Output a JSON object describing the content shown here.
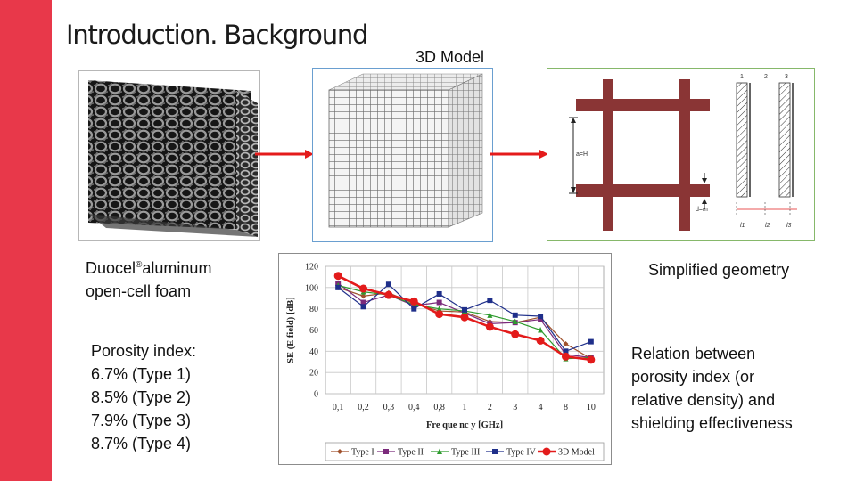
{
  "slide": {
    "title": "Introduction. Background",
    "accent_color": "#e8384a"
  },
  "model": {
    "label": "3D Model"
  },
  "foam": {
    "caption_line1_a": "Duocel",
    "caption_sup": "®",
    "caption_line1_b": "aluminum",
    "caption_line2": "open-cell foam"
  },
  "porosity": {
    "heading": "Porosity index:",
    "items": [
      "6.7% (Type 1)",
      "8.5% (Type 2)",
      "7.9% (Type 3)",
      "8.7% (Type 4)"
    ]
  },
  "geometry": {
    "caption": "Simplified geometry",
    "labels": {
      "top_1": "1",
      "top_2": "2",
      "top_3": "3",
      "side_dim": "a=H",
      "bottom_dim": "d=m",
      "l1": "l1",
      "l2": "l2",
      "l3": "l3"
    }
  },
  "relation": {
    "lines": [
      "Relation between",
      "porosity index (or",
      "relative density) and",
      "shielding effectiveness"
    ]
  },
  "chart_data": {
    "type": "line",
    "categories": [
      "0,1",
      "0,2",
      "0,3",
      "0,4",
      "0,8",
      "1",
      "2",
      "3",
      "4",
      "8",
      "10"
    ],
    "xlabel": "Fre que nc y [GHz]",
    "ylabel": "SE (E field) [dB]",
    "ylim": [
      0,
      120
    ],
    "yticks": [
      0,
      20,
      40,
      60,
      80,
      100,
      120
    ],
    "grid": true,
    "legend_position": "bottom",
    "series": [
      {
        "name": "Type I",
        "color": "#a0522d",
        "marker": "diamond",
        "values": [
          100,
          92,
          95,
          85,
          78,
          77,
          68,
          67,
          72,
          47,
          33
        ]
      },
      {
        "name": "Type II",
        "color": "#7b2a7b",
        "marker": "square",
        "values": [
          104,
          86,
          93,
          83,
          86,
          76,
          66,
          67,
          70,
          37,
          34
        ]
      },
      {
        "name": "Type III",
        "color": "#2e9b2e",
        "marker": "triangle",
        "values": [
          102,
          96,
          93,
          84,
          80,
          78,
          74,
          68,
          60,
          33,
          34
        ]
      },
      {
        "name": "Type IV",
        "color": "#1f2f8a",
        "marker": "square",
        "values": [
          100,
          82,
          103,
          80,
          94,
          79,
          88,
          74,
          73,
          40,
          49
        ]
      },
      {
        "name": "3D Model",
        "color": "#e31b1b",
        "marker": "circle",
        "values": [
          111,
          99,
          93,
          87,
          75,
          72,
          63,
          56,
          50,
          35,
          32
        ]
      }
    ]
  }
}
